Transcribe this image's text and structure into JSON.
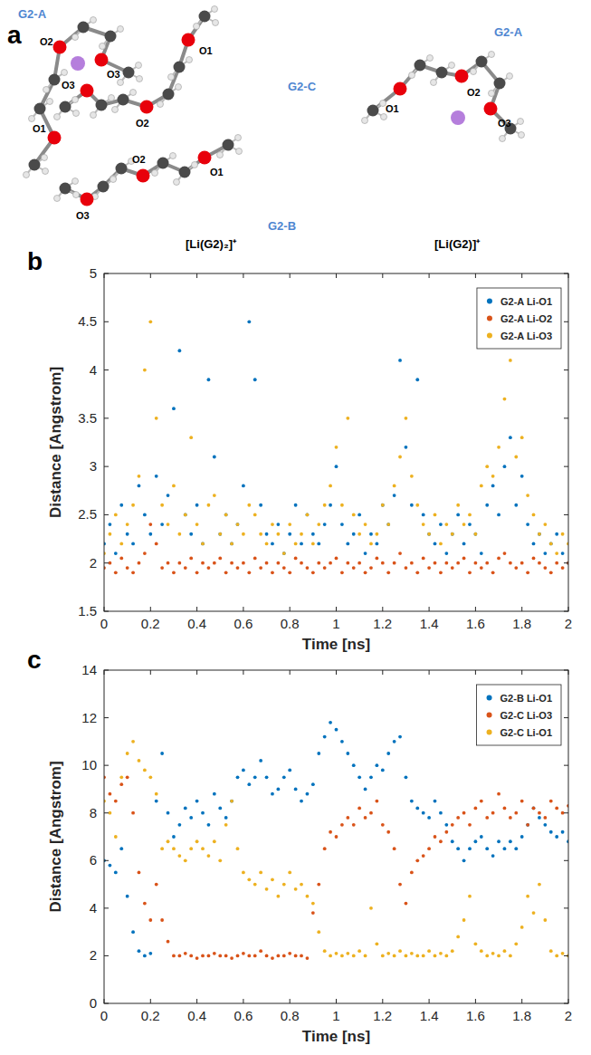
{
  "diagram": {
    "label": "a",
    "complexes": [
      {
        "title": "[Li(G2)₂]⁺",
        "molecules": [
          {
            "name": "G2-A",
            "atoms": [
              "O1",
              "O2",
              "O3"
            ]
          },
          {
            "name": "G2-C",
            "atoms": [
              "O1",
              "O2",
              "O3"
            ]
          },
          {
            "name": "G2-B",
            "atoms": [
              "O1",
              "O2",
              "O3"
            ]
          }
        ]
      },
      {
        "title": "[Li(G2)]⁺",
        "molecules": [
          {
            "name": "G2-A",
            "atoms": [
              "O1",
              "O2",
              "O3"
            ]
          }
        ]
      }
    ]
  },
  "chart_data": [
    {
      "type": "scatter",
      "label": "b",
      "x_label": "Time [ns]",
      "y_label": "Distance [Angstrom]",
      "xlim": [
        0,
        2
      ],
      "ylim": [
        1.5,
        5
      ],
      "xticks": [
        0,
        0.2,
        0.4,
        0.6,
        0.8,
        1,
        1.2,
        1.4,
        1.6,
        1.8,
        2
      ],
      "yticks": [
        1.5,
        2,
        2.5,
        3,
        3.5,
        4,
        4.5,
        5
      ],
      "grid": false,
      "legend": "upper-right",
      "marker": "dot",
      "x": [
        0,
        0.025,
        0.05,
        0.075,
        0.1,
        0.125,
        0.15,
        0.175,
        0.2,
        0.225,
        0.25,
        0.275,
        0.3,
        0.325,
        0.35,
        0.375,
        0.4,
        0.425,
        0.45,
        0.475,
        0.5,
        0.525,
        0.55,
        0.575,
        0.6,
        0.625,
        0.65,
        0.675,
        0.7,
        0.725,
        0.75,
        0.775,
        0.8,
        0.825,
        0.85,
        0.875,
        0.9,
        0.925,
        0.95,
        0.975,
        1,
        1.025,
        1.05,
        1.075,
        1.1,
        1.125,
        1.15,
        1.175,
        1.2,
        1.225,
        1.25,
        1.275,
        1.3,
        1.325,
        1.35,
        1.375,
        1.4,
        1.425,
        1.45,
        1.475,
        1.5,
        1.525,
        1.55,
        1.575,
        1.6,
        1.625,
        1.65,
        1.675,
        1.7,
        1.725,
        1.75,
        1.775,
        1.8,
        1.825,
        1.85,
        1.875,
        1.9,
        1.925,
        1.95,
        1.975,
        2
      ],
      "series": [
        {
          "name": "G2-A  Li-O1",
          "color": "#0072bd",
          "values": [
            2.2,
            2.4,
            2.1,
            2.6,
            2.3,
            2.2,
            2.8,
            2.5,
            2.3,
            2.9,
            2.4,
            2.7,
            3.6,
            4.2,
            2.5,
            2.3,
            2.6,
            2.2,
            3.9,
            3.1,
            2.3,
            2.5,
            2.2,
            2.4,
            2.8,
            4.5,
            3.9,
            2.6,
            2.3,
            2.2,
            2.4,
            2.1,
            2.3,
            2.6,
            2.2,
            2.5,
            2.3,
            2.2,
            2.4,
            2.6,
            3.0,
            2.4,
            2.2,
            2.3,
            2.5,
            2.1,
            2.3,
            2.2,
            2.6,
            2.4,
            2.7,
            4.1,
            3.2,
            2.6,
            3.9,
            2.5,
            2.3,
            2.2,
            2.4,
            2.1,
            2.3,
            2.5,
            2.2,
            2.4,
            2.3,
            2.1,
            2.6,
            2.8,
            2.5,
            3.0,
            3.3,
            2.6,
            2.9,
            2.4,
            2.2,
            2.3,
            2.1,
            2.2,
            2.3,
            2.1,
            2.0
          ]
        },
        {
          "name": "G2-A  Li-O2",
          "color": "#d95319",
          "values": [
            1.95,
            2.0,
            1.9,
            2.05,
            1.95,
            1.9,
            2.0,
            2.1,
            2.4,
            2.2,
            1.95,
            2.0,
            1.9,
            2.0,
            1.95,
            2.05,
            1.9,
            2.0,
            1.95,
            2.0,
            2.05,
            1.9,
            2.0,
            1.95,
            2.0,
            1.9,
            2.05,
            1.95,
            2.0,
            1.9,
            2.0,
            1.95,
            1.9,
            2.05,
            2.0,
            1.95,
            1.9,
            2.0,
            1.95,
            2.0,
            2.05,
            1.9,
            2.0,
            1.95,
            2.0,
            1.9,
            1.95,
            2.05,
            2.0,
            1.9,
            2.0,
            2.1,
            1.95,
            2.0,
            1.9,
            2.05,
            1.95,
            2.0,
            1.9,
            2.0,
            1.95,
            2.0,
            2.05,
            1.9,
            2.0,
            1.95,
            2.0,
            1.9,
            2.05,
            2.1,
            2.0,
            1.95,
            2.0,
            1.9,
            2.05,
            2.0,
            1.95,
            1.9,
            2.0,
            1.95,
            2.0
          ]
        },
        {
          "name": "G2-A  Li-O3",
          "color": "#edb120",
          "values": [
            2.1,
            2.3,
            2.5,
            2.2,
            2.4,
            2.6,
            2.9,
            4.0,
            4.5,
            3.5,
            2.6,
            2.4,
            2.8,
            2.3,
            2.5,
            3.3,
            2.4,
            2.2,
            2.6,
            2.7,
            2.3,
            2.5,
            2.2,
            2.4,
            2.3,
            2.6,
            2.5,
            2.3,
            2.2,
            2.4,
            2.3,
            2.1,
            2.4,
            2.2,
            2.3,
            2.5,
            2.2,
            2.4,
            2.6,
            2.8,
            3.2,
            2.6,
            3.5,
            2.5,
            2.3,
            2.4,
            2.2,
            2.3,
            2.6,
            2.4,
            2.8,
            3.1,
            3.5,
            2.9,
            2.6,
            2.4,
            2.3,
            2.5,
            2.2,
            2.4,
            2.3,
            2.6,
            2.4,
            2.5,
            2.3,
            2.8,
            3.0,
            2.9,
            3.2,
            3.7,
            4.1,
            3.1,
            3.3,
            2.7,
            2.5,
            2.3,
            2.4,
            2.2,
            2.1,
            2.3,
            2.2
          ]
        }
      ]
    },
    {
      "type": "scatter",
      "label": "c",
      "x_label": "Time [ns]",
      "y_label": "Distance [Angstrom]",
      "xlim": [
        0,
        2
      ],
      "ylim": [
        0,
        14
      ],
      "xticks": [
        0,
        0.2,
        0.4,
        0.6,
        0.8,
        1,
        1.2,
        1.4,
        1.6,
        1.8,
        2
      ],
      "yticks": [
        0,
        2,
        4,
        6,
        8,
        10,
        12,
        14
      ],
      "grid": false,
      "legend": "upper-right",
      "marker": "dot",
      "x": [
        0,
        0.025,
        0.05,
        0.075,
        0.1,
        0.125,
        0.15,
        0.175,
        0.2,
        0.225,
        0.25,
        0.275,
        0.3,
        0.325,
        0.35,
        0.375,
        0.4,
        0.425,
        0.45,
        0.475,
        0.5,
        0.525,
        0.55,
        0.575,
        0.6,
        0.625,
        0.65,
        0.675,
        0.7,
        0.725,
        0.75,
        0.775,
        0.8,
        0.825,
        0.85,
        0.875,
        0.9,
        0.925,
        0.95,
        0.975,
        1,
        1.025,
        1.05,
        1.075,
        1.1,
        1.125,
        1.15,
        1.175,
        1.2,
        1.225,
        1.25,
        1.275,
        1.3,
        1.325,
        1.35,
        1.375,
        1.4,
        1.425,
        1.45,
        1.475,
        1.5,
        1.525,
        1.55,
        1.575,
        1.6,
        1.625,
        1.65,
        1.675,
        1.7,
        1.725,
        1.75,
        1.775,
        1.8,
        1.825,
        1.85,
        1.875,
        1.9,
        1.925,
        1.95,
        1.975,
        2
      ],
      "series": [
        {
          "name": "G2-B  Li-O1",
          "color": "#0072bd",
          "values": [
            6.0,
            5.8,
            5.5,
            6.5,
            4.5,
            3.0,
            2.2,
            2.0,
            2.1,
            8.5,
            10.5,
            8.0,
            7.0,
            7.5,
            8.2,
            7.8,
            8.5,
            8.0,
            7.5,
            8.8,
            8.2,
            7.8,
            8.5,
            9.5,
            9.8,
            9.2,
            9.5,
            10.2,
            9.5,
            8.8,
            9.0,
            9.5,
            9.8,
            9.0,
            8.5,
            8.8,
            9.2,
            10.5,
            11.2,
            11.8,
            11.5,
            11.0,
            10.5,
            10.0,
            9.5,
            9.0,
            9.5,
            10.0,
            9.8,
            10.5,
            11.0,
            11.2,
            9.5,
            8.5,
            8.2,
            8.0,
            7.8,
            8.5,
            8.0,
            7.5,
            6.8,
            6.5,
            6.0,
            6.5,
            6.8,
            7.0,
            6.5,
            6.2,
            6.8,
            6.5,
            6.8,
            6.5,
            7.0,
            7.5,
            8.2,
            7.8,
            7.5,
            7.2,
            7.0,
            7.2,
            6.8
          ]
        },
        {
          "name": "G2-C  Li-O3",
          "color": "#d95319",
          "values": [
            9.5,
            8.8,
            8.5,
            9.2,
            9.5,
            8.0,
            5.5,
            4.2,
            3.5,
            5.0,
            3.5,
            2.6,
            2.0,
            2.0,
            2.1,
            2.0,
            1.9,
            2.0,
            2.0,
            2.1,
            2.0,
            2.0,
            1.9,
            2.0,
            2.1,
            2.0,
            2.0,
            2.2,
            2.0,
            1.9,
            2.0,
            2.0,
            2.1,
            2.0,
            2.0,
            1.9,
            3.8,
            5.0,
            6.5,
            7.2,
            7.0,
            7.5,
            7.8,
            7.5,
            8.2,
            7.8,
            8.0,
            8.5,
            7.5,
            7.2,
            6.5,
            5.0,
            4.2,
            5.5,
            6.0,
            6.2,
            6.5,
            7.0,
            6.8,
            7.2,
            7.5,
            7.8,
            8.0,
            7.5,
            8.2,
            8.5,
            7.8,
            8.0,
            8.8,
            8.2,
            7.8,
            8.0,
            8.5,
            7.5,
            8.2,
            8.0,
            7.8,
            8.5,
            8.2,
            8.0,
            8.3
          ]
        },
        {
          "name": "G2-C  Li-O1",
          "color": "#edb120",
          "values": [
            8.5,
            8.0,
            7.0,
            9.5,
            10.5,
            11.0,
            10.2,
            9.8,
            9.5,
            8.8,
            6.5,
            6.8,
            6.5,
            6.2,
            6.0,
            6.5,
            6.8,
            6.5,
            6.2,
            6.8,
            6.0,
            7.5,
            8.5,
            6.5,
            5.5,
            5.2,
            5.0,
            5.5,
            4.8,
            5.2,
            4.5,
            5.0,
            5.5,
            4.8,
            5.0,
            4.5,
            4.2,
            3.0,
            2.2,
            2.0,
            2.1,
            2.0,
            2.1,
            2.0,
            2.2,
            2.0,
            4.0,
            2.5,
            2.0,
            2.1,
            2.0,
            2.2,
            2.0,
            2.1,
            2.0,
            2.0,
            2.2,
            2.0,
            2.1,
            2.0,
            2.2,
            2.8,
            3.5,
            4.5,
            2.5,
            2.2,
            2.0,
            2.1,
            2.0,
            2.2,
            2.0,
            2.5,
            3.2,
            4.5,
            3.8,
            5.0,
            3.5,
            2.2,
            2.0,
            2.1,
            2.0
          ]
        }
      ]
    }
  ]
}
